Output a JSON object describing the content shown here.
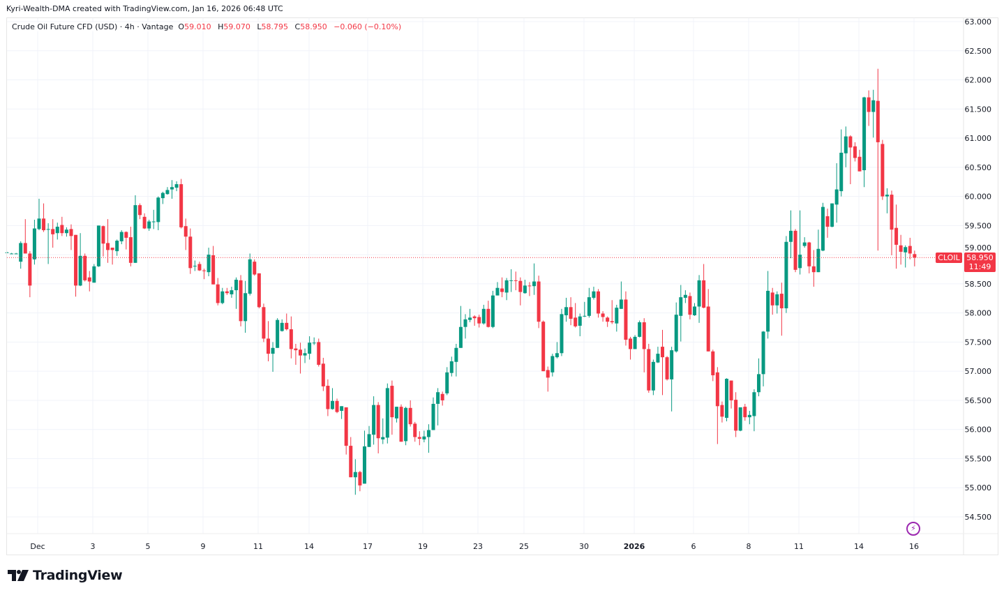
{
  "attribution": "Kyri-Wealth-DMA created with TradingView.com, Jan 16, 2026 06:48 UTC",
  "legend": {
    "title": "Crude Oil Future CFD (USD) · 4h · Vantage",
    "o_label": "O",
    "o": "59.010",
    "h_label": "H",
    "h": "59.070",
    "l_label": "L",
    "l": "58.795",
    "c_label": "C",
    "c": "58.950",
    "change": "−0.060 (−0.10%)"
  },
  "last_price": {
    "symbol": "CLOIL",
    "price": "58.950",
    "countdown": "11:49",
    "value": 58.95
  },
  "colors": {
    "up": "#089981",
    "down": "#f23645",
    "price_line": "#f23645",
    "grid": "#f0f3fa",
    "alert_icon": "#9c27b0"
  },
  "logo": {
    "text": "TradingView"
  },
  "icons": {
    "alert": "lightning-icon",
    "logo": "tradingview-logo-icon"
  },
  "chart_data": {
    "type": "candlestick",
    "interval": "4h",
    "grid": true,
    "ylim": [
      54.5,
      63.0
    ],
    "y_ticks": [
      "63.000",
      "62.500",
      "62.000",
      "61.500",
      "61.000",
      "60.500",
      "60.000",
      "59.500",
      "59.000",
      "58.500",
      "58.000",
      "57.500",
      "57.000",
      "56.500",
      "56.000",
      "55.500",
      "55.000",
      "54.500"
    ],
    "x_ticks": [
      "Dec",
      "3",
      "5",
      "9",
      "11",
      "14",
      "17",
      "19",
      "23",
      "25",
      "30",
      "2026",
      "6",
      "8",
      "11",
      "14",
      "16"
    ],
    "x_ticks_bold": [
      "2026"
    ],
    "ohlc_fields": [
      "open",
      "high",
      "low",
      "close"
    ],
    "candles": [
      [
        59.04,
        59.05,
        59.03,
        59.04
      ],
      [
        59.02,
        59.03,
        59.01,
        59.02
      ],
      [
        59.02,
        59.03,
        59.01,
        59.02
      ],
      [
        58.88,
        59.23,
        58.76,
        59.2
      ],
      [
        59.2,
        59.61,
        59.02,
        59.02
      ],
      [
        59.02,
        59.06,
        58.27,
        58.47
      ],
      [
        58.92,
        59.6,
        58.83,
        59.45
      ],
      [
        59.44,
        59.96,
        59.42,
        59.62
      ],
      [
        59.62,
        59.88,
        59.39,
        59.42
      ],
      [
        59.43,
        59.54,
        58.84,
        59.44
      ],
      [
        59.44,
        59.61,
        59.12,
        59.35
      ],
      [
        59.37,
        59.55,
        59.26,
        59.48
      ],
      [
        59.51,
        59.65,
        59.32,
        59.37
      ],
      [
        59.37,
        59.47,
        59.31,
        59.43
      ],
      [
        59.44,
        59.52,
        59.08,
        59.32
      ],
      [
        59.34,
        59.34,
        58.28,
        58.47
      ],
      [
        58.47,
        59.37,
        58.46,
        58.98
      ],
      [
        58.98,
        59.02,
        58.54,
        58.56
      ],
      [
        58.61,
        58.72,
        58.37,
        58.54
      ],
      [
        58.52,
        58.84,
        58.52,
        58.8
      ],
      [
        58.8,
        59.5,
        58.79,
        59.5
      ],
      [
        59.49,
        59.5,
        58.97,
        59.19
      ],
      [
        59.2,
        59.61,
        58.86,
        59.08
      ],
      [
        59.12,
        59.12,
        58.83,
        59.08
      ],
      [
        59.06,
        59.26,
        58.98,
        59.24
      ],
      [
        59.23,
        59.42,
        59.18,
        59.39
      ],
      [
        59.39,
        59.4,
        59.09,
        59.29
      ],
      [
        59.3,
        59.48,
        58.8,
        58.86
      ],
      [
        58.86,
        60.02,
        58.86,
        59.85
      ],
      [
        59.85,
        59.88,
        59.61,
        59.68
      ],
      [
        59.65,
        59.71,
        59.44,
        59.45
      ],
      [
        59.45,
        59.6,
        59.41,
        59.57
      ],
      [
        59.56,
        59.77,
        59.44,
        59.57
      ],
      [
        59.56,
        60.0,
        59.42,
        59.98
      ],
      [
        59.97,
        60.08,
        59.87,
        60.06
      ],
      [
        60.04,
        60.16,
        60.03,
        60.11
      ],
      [
        60.12,
        60.28,
        59.96,
        60.16
      ],
      [
        60.15,
        60.26,
        60.09,
        60.21
      ],
      [
        60.21,
        60.3,
        59.45,
        59.47
      ],
      [
        59.49,
        59.62,
        59.08,
        59.31
      ],
      [
        59.31,
        59.45,
        58.67,
        58.77
      ],
      [
        58.8,
        58.9,
        58.72,
        58.81
      ],
      [
        58.84,
        58.88,
        58.72,
        58.73
      ],
      [
        58.73,
        58.76,
        58.58,
        58.72
      ],
      [
        58.7,
        59.12,
        58.63,
        59.0
      ],
      [
        58.99,
        59.15,
        58.49,
        58.49
      ],
      [
        58.49,
        58.6,
        58.13,
        58.17
      ],
      [
        58.17,
        58.43,
        58.15,
        58.37
      ],
      [
        58.37,
        58.43,
        58.31,
        58.34
      ],
      [
        58.32,
        58.45,
        58.26,
        58.39
      ],
      [
        58.39,
        58.61,
        58.07,
        58.57
      ],
      [
        58.56,
        58.65,
        57.77,
        57.86
      ],
      [
        57.86,
        58.55,
        57.66,
        58.34
      ],
      [
        58.33,
        59.02,
        58.3,
        58.92
      ],
      [
        58.88,
        58.92,
        58.64,
        58.66
      ],
      [
        58.68,
        58.68,
        58.08,
        58.1
      ],
      [
        58.1,
        58.16,
        57.5,
        57.56
      ],
      [
        57.56,
        57.86,
        57.17,
        57.3
      ],
      [
        57.3,
        57.5,
        56.99,
        57.4
      ],
      [
        57.4,
        57.91,
        57.4,
        57.88
      ],
      [
        57.69,
        57.89,
        57.68,
        57.83
      ],
      [
        57.83,
        57.99,
        57.7,
        57.72
      ],
      [
        57.72,
        57.94,
        57.22,
        57.38
      ],
      [
        57.39,
        57.47,
        57.11,
        57.36
      ],
      [
        57.37,
        57.49,
        56.96,
        57.27
      ],
      [
        57.27,
        57.39,
        57.14,
        57.31
      ],
      [
        57.3,
        57.6,
        57.2,
        57.49
      ],
      [
        57.48,
        57.58,
        57.45,
        57.49
      ],
      [
        57.5,
        57.56,
        57.08,
        57.11
      ],
      [
        57.13,
        57.23,
        56.66,
        56.74
      ],
      [
        56.75,
        56.86,
        56.23,
        56.35
      ],
      [
        56.35,
        56.71,
        56.34,
        56.49
      ],
      [
        56.49,
        56.53,
        56.28,
        56.3
      ],
      [
        56.32,
        56.4,
        56.18,
        56.4
      ],
      [
        56.38,
        56.38,
        55.57,
        55.72
      ],
      [
        55.72,
        55.87,
        55.18,
        55.18
      ],
      [
        55.18,
        55.49,
        54.88,
        55.27
      ],
      [
        55.27,
        55.29,
        54.94,
        55.04
      ],
      [
        55.07,
        55.98,
        55.07,
        55.71
      ],
      [
        55.7,
        56.06,
        55.7,
        55.92
      ],
      [
        55.91,
        56.57,
        55.74,
        56.42
      ],
      [
        56.42,
        56.47,
        55.59,
        55.85
      ],
      [
        55.83,
        56.19,
        55.75,
        55.87
      ],
      [
        55.86,
        56.79,
        55.76,
        56.71
      ],
      [
        56.75,
        56.84,
        55.91,
        56.21
      ],
      [
        56.19,
        56.39,
        56.12,
        56.39
      ],
      [
        56.39,
        56.43,
        55.79,
        55.79
      ],
      [
        55.8,
        56.39,
        55.73,
        56.37
      ],
      [
        56.37,
        56.5,
        56.05,
        56.09
      ],
      [
        56.1,
        56.13,
        55.79,
        55.87
      ],
      [
        55.87,
        55.97,
        55.73,
        55.84
      ],
      [
        55.83,
        55.98,
        55.78,
        55.88
      ],
      [
        55.87,
        56.09,
        55.6,
        55.99
      ],
      [
        55.99,
        56.55,
        55.99,
        56.44
      ],
      [
        56.44,
        56.71,
        56.07,
        56.64
      ],
      [
        56.61,
        56.65,
        56.41,
        56.5
      ],
      [
        56.62,
        57.07,
        56.59,
        56.98
      ],
      [
        56.97,
        57.25,
        56.91,
        57.17
      ],
      [
        57.16,
        57.47,
        56.91,
        57.4
      ],
      [
        57.4,
        58.12,
        57.4,
        57.76
      ],
      [
        57.76,
        57.98,
        57.56,
        57.89
      ],
      [
        57.88,
        58.07,
        57.84,
        57.92
      ],
      [
        57.94,
        57.96,
        57.78,
        57.91
      ],
      [
        57.93,
        57.97,
        57.75,
        57.82
      ],
      [
        57.82,
        58.14,
        57.8,
        58.07
      ],
      [
        58.07,
        58.21,
        57.75,
        57.76
      ],
      [
        57.76,
        58.38,
        57.74,
        58.3
      ],
      [
        58.3,
        58.53,
        58.3,
        58.43
      ],
      [
        58.42,
        58.61,
        58.27,
        58.36
      ],
      [
        58.35,
        58.6,
        58.22,
        58.56
      ],
      [
        58.55,
        58.75,
        58.36,
        58.56
      ],
      [
        58.56,
        58.71,
        58.39,
        58.55
      ],
      [
        58.55,
        58.61,
        58.13,
        58.36
      ],
      [
        58.34,
        58.57,
        58.33,
        58.47
      ],
      [
        58.47,
        58.53,
        58.29,
        58.46
      ],
      [
        58.46,
        58.85,
        58.31,
        58.54
      ],
      [
        58.54,
        58.64,
        57.74,
        57.85
      ],
      [
        57.85,
        57.87,
        57.0,
        57.0
      ],
      [
        57.02,
        57.08,
        56.65,
        56.89
      ],
      [
        56.98,
        57.3,
        56.91,
        57.26
      ],
      [
        57.24,
        57.5,
        57.22,
        57.31
      ],
      [
        57.31,
        58.07,
        57.26,
        57.98
      ],
      [
        57.96,
        58.26,
        57.85,
        58.1
      ],
      [
        58.1,
        58.27,
        57.79,
        57.9
      ],
      [
        57.92,
        58.17,
        57.75,
        57.77
      ],
      [
        57.78,
        57.99,
        57.6,
        57.94
      ],
      [
        57.94,
        58.19,
        57.93,
        57.95
      ],
      [
        57.95,
        58.43,
        57.92,
        58.27
      ],
      [
        58.26,
        58.45,
        58.23,
        58.37
      ],
      [
        58.37,
        58.41,
        57.92,
        57.99
      ],
      [
        57.99,
        58.03,
        57.85,
        57.93
      ],
      [
        57.92,
        57.94,
        57.76,
        57.85
      ],
      [
        57.86,
        58.22,
        57.81,
        57.84
      ],
      [
        57.82,
        58.14,
        57.68,
        58.09
      ],
      [
        58.07,
        58.54,
        58.07,
        58.23
      ],
      [
        58.23,
        58.37,
        57.44,
        57.54
      ],
      [
        57.56,
        57.59,
        57.2,
        57.38
      ],
      [
        57.38,
        57.62,
        57.38,
        57.59
      ],
      [
        57.59,
        57.87,
        57.58,
        57.84
      ],
      [
        57.84,
        57.91,
        56.98,
        57.38
      ],
      [
        57.38,
        57.47,
        56.63,
        56.67
      ],
      [
        56.67,
        57.2,
        56.59,
        57.16
      ],
      [
        57.15,
        57.42,
        57.14,
        57.3
      ],
      [
        57.42,
        57.71,
        56.59,
        57.24
      ],
      [
        57.24,
        57.26,
        56.84,
        56.86
      ],
      [
        56.86,
        57.42,
        56.31,
        57.36
      ],
      [
        57.34,
        58.18,
        57.32,
        57.97
      ],
      [
        57.95,
        58.48,
        57.51,
        58.27
      ],
      [
        58.26,
        58.39,
        58.17,
        58.31
      ],
      [
        58.29,
        58.35,
        57.89,
        57.97
      ],
      [
        57.96,
        58.17,
        57.95,
        58.11
      ],
      [
        58.11,
        58.65,
        57.83,
        58.56
      ],
      [
        58.56,
        58.84,
        58.08,
        58.09
      ],
      [
        58.11,
        58.41,
        57.34,
        57.34
      ],
      [
        57.34,
        57.37,
        56.83,
        56.93
      ],
      [
        56.98,
        57.07,
        55.75,
        56.4
      ],
      [
        56.42,
        56.48,
        56.12,
        56.22
      ],
      [
        56.2,
        56.88,
        56.14,
        56.87
      ],
      [
        56.84,
        56.84,
        56.36,
        56.5
      ],
      [
        56.51,
        56.64,
        55.87,
        55.98
      ],
      [
        55.98,
        56.38,
        55.97,
        56.38
      ],
      [
        56.39,
        56.44,
        56.15,
        56.21
      ],
      [
        56.21,
        56.32,
        56.09,
        56.25
      ],
      [
        56.23,
        56.69,
        55.97,
        56.64
      ],
      [
        56.64,
        57.22,
        56.57,
        56.95
      ],
      [
        56.95,
        57.69,
        56.74,
        57.68
      ],
      [
        57.68,
        58.72,
        57.56,
        58.38
      ],
      [
        58.35,
        58.43,
        57.97,
        58.13
      ],
      [
        58.13,
        58.37,
        57.99,
        58.32
      ],
      [
        58.33,
        58.52,
        57.61,
        58.08
      ],
      [
        58.08,
        59.32,
        58.0,
        59.22
      ],
      [
        59.22,
        59.76,
        58.94,
        59.41
      ],
      [
        59.41,
        59.44,
        58.7,
        58.74
      ],
      [
        58.77,
        59.76,
        58.66,
        59.0
      ],
      [
        59.15,
        59.3,
        59.12,
        59.21
      ],
      [
        59.21,
        59.22,
        58.68,
        58.8
      ],
      [
        58.8,
        59.08,
        58.45,
        58.7
      ],
      [
        58.7,
        59.43,
        58.7,
        59.1
      ],
      [
        59.07,
        59.89,
        59.06,
        59.82
      ],
      [
        59.66,
        59.79,
        59.29,
        59.48
      ],
      [
        59.48,
        59.88,
        59.47,
        59.88
      ],
      [
        59.86,
        60.57,
        59.55,
        60.12
      ],
      [
        60.09,
        61.15,
        60.0,
        60.75
      ],
      [
        60.74,
        61.2,
        60.5,
        61.03
      ],
      [
        61.03,
        61.05,
        60.21,
        60.84
      ],
      [
        60.86,
        60.93,
        60.6,
        60.66
      ],
      [
        60.68,
        60.8,
        60.43,
        60.43
      ],
      [
        60.45,
        61.71,
        60.16,
        61.7
      ],
      [
        61.7,
        61.82,
        61.21,
        61.45
      ],
      [
        61.45,
        61.83,
        61.01,
        61.65
      ],
      [
        61.64,
        62.19,
        59.07,
        60.93
      ],
      [
        60.9,
        60.97,
        59.94,
        60.0
      ],
      [
        60.0,
        60.14,
        59.71,
        60.03
      ],
      [
        60.03,
        60.1,
        58.99,
        59.43
      ],
      [
        59.46,
        59.86,
        58.76,
        59.17
      ],
      [
        59.16,
        59.34,
        58.83,
        59.05
      ],
      [
        59.04,
        59.16,
        58.78,
        59.13
      ],
      [
        59.15,
        59.29,
        58.92,
        59.02
      ],
      [
        59.01,
        59.07,
        58.8,
        58.95
      ]
    ]
  }
}
